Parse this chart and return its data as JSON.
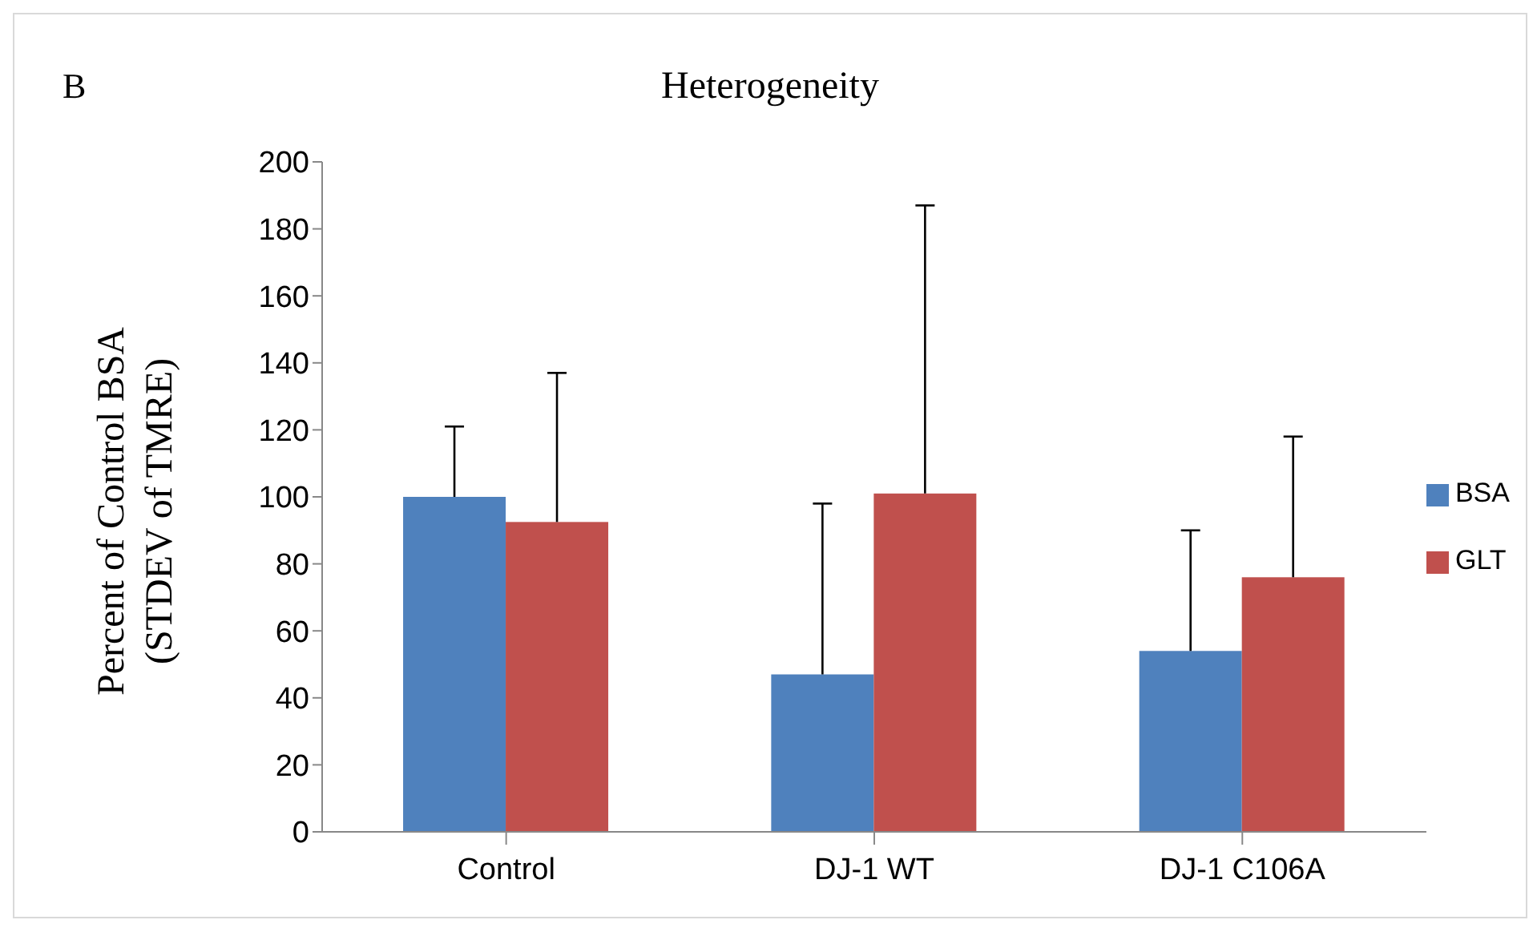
{
  "chart_data": {
    "type": "bar",
    "title": "Heterogeneity",
    "annotations": [
      "B"
    ],
    "ylabel": "Percent of Control BSA\n(STDEV of TMRE)",
    "categories": [
      "Control",
      "DJ-1 WT",
      "DJ-1 C106A"
    ],
    "series": [
      {
        "name": "BSA",
        "color": "#4f81bd",
        "values": [
          100,
          47,
          54
        ],
        "errors": [
          [
            100,
            121
          ],
          [
            47,
            98
          ],
          [
            54,
            90
          ]
        ]
      },
      {
        "name": "GLT",
        "color": "#c0504d",
        "values": [
          92.5,
          101,
          76
        ],
        "errors": [
          [
            92.5,
            137
          ],
          [
            101,
            187
          ],
          [
            76,
            118
          ]
        ]
      }
    ],
    "ylim": [
      0,
      200
    ],
    "yticks": [
      0,
      20,
      40,
      60,
      80,
      100,
      120,
      140,
      160,
      180,
      200
    ],
    "grid": false,
    "legend": "right"
  }
}
